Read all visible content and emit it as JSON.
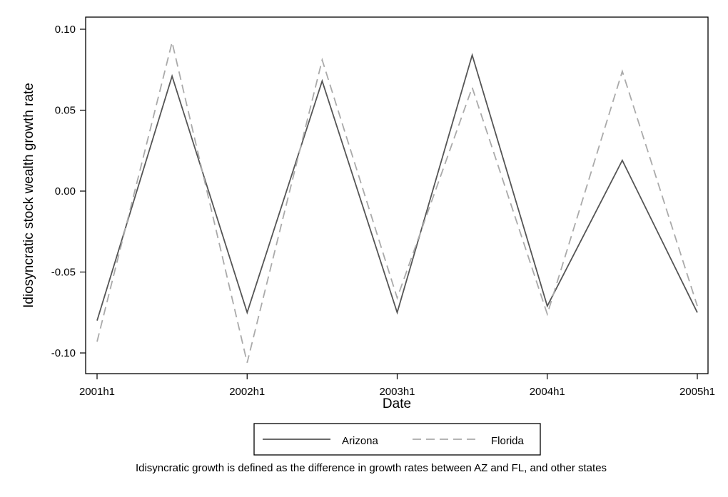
{
  "chart_data": {
    "type": "line",
    "x": [
      "2001h1",
      "2001h2",
      "2002h1",
      "2002h2",
      "2003h1",
      "2003h2",
      "2004h1",
      "2004h2",
      "2005h1"
    ],
    "x_tick_labels": [
      "2001h1",
      "2002h1",
      "2003h1",
      "2004h1",
      "2005h1"
    ],
    "series": [
      {
        "name": "Arizona",
        "style": "solid",
        "color": "#555555",
        "values": [
          -0.08,
          0.071,
          -0.075,
          0.068,
          -0.075,
          0.084,
          -0.071,
          0.019,
          -0.075
        ]
      },
      {
        "name": "Florida",
        "style": "dashed",
        "color": "#aaaaaa",
        "values": [
          -0.093,
          0.092,
          -0.106,
          0.081,
          -0.066,
          0.064,
          -0.076,
          0.074,
          -0.071
        ]
      }
    ],
    "xlabel": "Date",
    "ylabel": "Idiosyncratic stock wealth growth rate",
    "ylim": [
      -0.1,
      0.1
    ],
    "y_tick_labels": [
      "-0.10",
      "-0.05",
      "0.00",
      "0.05",
      "0.10"
    ],
    "y_ticks": [
      -0.1,
      -0.05,
      0.0,
      0.05,
      0.1
    ],
    "grid": false,
    "legend_position": "bottom",
    "note": "Idisyncratic growth is defined as the difference in growth rates between AZ and FL, and other states"
  }
}
